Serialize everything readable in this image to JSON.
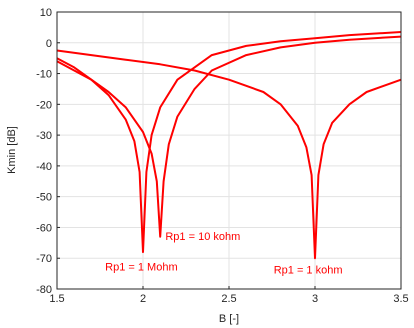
{
  "chart_data": {
    "type": "line",
    "xlabel": "B [-]",
    "ylabel": "Kmin [dB]",
    "xlim": [
      1.5,
      3.5
    ],
    "ylim": [
      -80,
      10
    ],
    "xticks": [
      "1.5",
      "2",
      "2.5",
      "3",
      "3.5"
    ],
    "yticks": [
      "10",
      "0",
      "-10",
      "-20",
      "-30",
      "-40",
      "-50",
      "-60",
      "-70",
      "-80"
    ],
    "grid": true,
    "line_color": "#ff0000",
    "series": [
      {
        "annotation": "Rp1 = 1 Mohm",
        "x": [
          1.5,
          1.6,
          1.7,
          1.8,
          1.9,
          1.95,
          1.98,
          2.0,
          2.02,
          2.05,
          2.1,
          2.2,
          2.4,
          2.6,
          2.8,
          3.0,
          3.2,
          3.5
        ],
        "y": [
          -5,
          -8,
          -12,
          -17,
          -25,
          -32,
          -42,
          -68,
          -42,
          -30,
          -21,
          -12,
          -4,
          -1,
          0.5,
          1.5,
          2.5,
          3.5
        ]
      },
      {
        "annotation": "Rp1 = 10 kohm",
        "x": [
          1.5,
          1.6,
          1.7,
          1.8,
          1.9,
          2.0,
          2.05,
          2.08,
          2.1,
          2.12,
          2.15,
          2.2,
          2.3,
          2.4,
          2.6,
          2.8,
          3.0,
          3.2,
          3.5
        ],
        "y": [
          -6,
          -9,
          -12,
          -16,
          -21,
          -29,
          -36,
          -45,
          -63,
          -45,
          -33,
          -24,
          -15,
          -9,
          -4,
          -1.5,
          0,
          1,
          2
        ]
      },
      {
        "annotation": "Rp1 = 1 kohm",
        "x": [
          1.5,
          1.7,
          1.9,
          2.1,
          2.3,
          2.5,
          2.7,
          2.8,
          2.9,
          2.95,
          2.98,
          3.0,
          3.02,
          3.05,
          3.1,
          3.2,
          3.3,
          3.5
        ],
        "y": [
          -2.5,
          -4,
          -5.5,
          -7,
          -9,
          -12,
          -16,
          -20,
          -27,
          -34,
          -43,
          -70,
          -43,
          -33,
          -26,
          -20,
          -16,
          -12
        ]
      }
    ],
    "annotations": [
      {
        "text": "Rp1 = 10 kohm",
        "x": 2.13,
        "y": -64
      },
      {
        "text": "Rp1 = 1 Mohm",
        "x": 1.78,
        "y": -74
      },
      {
        "text": "Rp1 = 1 kohm",
        "x": 2.76,
        "y": -75
      }
    ]
  }
}
